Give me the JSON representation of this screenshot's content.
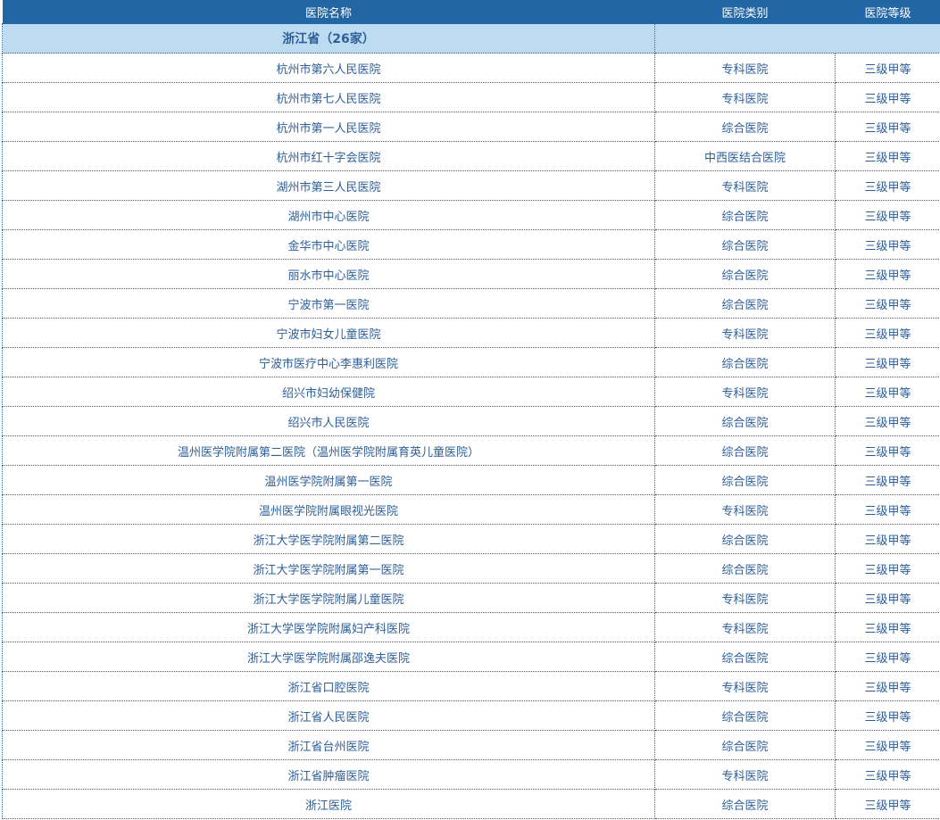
{
  "header": {
    "name": "医院名称",
    "type": "医院类别",
    "level": "医院等级"
  },
  "province": {
    "label": "浙江省（26家）",
    "type": ""
  },
  "rows": [
    [
      "杭州市第六人民医院",
      "专科医院",
      "三级甲等"
    ],
    [
      "杭州市第七人民医院",
      "专科医院",
      "三级甲等"
    ],
    [
      "杭州市第一人民医院",
      "综合医院",
      "三级甲等"
    ],
    [
      "杭州市红十字会医院",
      "中西医结合医院",
      "三级甲等"
    ],
    [
      "湖州市第三人民医院",
      "专科医院",
      "三级甲等"
    ],
    [
      "湖州市中心医院",
      "综合医院",
      "三级甲等"
    ],
    [
      "金华市中心医院",
      "综合医院",
      "三级甲等"
    ],
    [
      "丽水市中心医院",
      "综合医院",
      "三级甲等"
    ],
    [
      "宁波市第一医院",
      "综合医院",
      "三级甲等"
    ],
    [
      "宁波市妇女儿童医院",
      "专科医院",
      "三级甲等"
    ],
    [
      "宁波市医疗中心李惠利医院",
      "综合医院",
      "三级甲等"
    ],
    [
      "绍兴市妇幼保健院",
      "专科医院",
      "三级甲等"
    ],
    [
      "绍兴市人民医院",
      "综合医院",
      "三级甲等"
    ],
    [
      "温州医学院附属第二医院（温州医学院附属育英儿童医院）",
      "综合医院",
      "三级甲等"
    ],
    [
      "温州医学院附属第一医院",
      "综合医院",
      "三级甲等"
    ],
    [
      "温州医学院附属眼视光医院",
      "专科医院",
      "三级甲等"
    ],
    [
      "浙江大学医学院附属第二医院",
      "综合医院",
      "三级甲等"
    ],
    [
      "浙江大学医学院附属第一医院",
      "综合医院",
      "三级甲等"
    ],
    [
      "浙江大学医学院附属儿童医院",
      "专科医院",
      "三级甲等"
    ],
    [
      "浙江大学医学院附属妇产科医院",
      "专科医院",
      "三级甲等"
    ],
    [
      "浙江大学医学院附属邵逸夫医院",
      "综合医院",
      "三级甲等"
    ],
    [
      "浙江省口腔医院",
      "专科医院",
      "三级甲等"
    ],
    [
      "浙江省人民医院",
      "综合医院",
      "三级甲等"
    ],
    [
      "浙江省台州医院",
      "综合医院",
      "三级甲等"
    ],
    [
      "浙江省肿瘤医院",
      "专科医院",
      "三级甲等"
    ],
    [
      "浙江医院",
      "综合医院",
      "三级甲等"
    ]
  ]
}
